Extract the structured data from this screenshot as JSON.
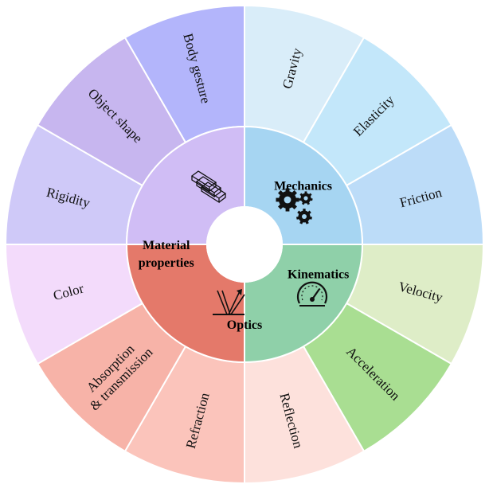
{
  "categories": [
    {
      "id": "mechanics",
      "label": [
        "Mechanics"
      ],
      "color": "#a6d5f2",
      "icon": "gears-icon",
      "items": [
        {
          "label": [
            "Gravity"
          ],
          "color": "#d9edf9"
        },
        {
          "label": [
            "Elasticity"
          ],
          "color": "#c3e7fa"
        },
        {
          "label": [
            "Friction"
          ],
          "color": "#bcdcf8"
        }
      ]
    },
    {
      "id": "kinematics",
      "label": [
        "Kinematics"
      ],
      "color": "#8fd0a9",
      "icon": "speedometer-icon",
      "items": [
        {
          "label": [
            "Velocity"
          ],
          "color": "#deedc7"
        },
        {
          "label": [
            "Acceleration"
          ],
          "color": "#a9de92"
        },
        {
          "label": [
            "Reflection"
          ],
          "color": "#fde1dc"
        }
      ]
    },
    {
      "id": "optics",
      "label": [
        "Optics"
      ],
      "color": "#e4796a",
      "icon": "light-reflection-icon",
      "items": [
        {
          "label": [
            "Refraction"
          ],
          "color": "#fbc4bb"
        },
        {
          "label": [
            "Absorption",
            "& transmission"
          ],
          "color": "#f7b3a8"
        },
        {
          "label": [
            "Color"
          ],
          "color": "#f3dbfb"
        }
      ]
    },
    {
      "id": "material-properties",
      "label": [
        "Material",
        "properties"
      ],
      "color": "#d0bdf5",
      "icon": "material-bars-icon",
      "items": [
        {
          "label": [
            "Rigidity"
          ],
          "color": "#cfc9f8"
        },
        {
          "label": [
            "Object shape"
          ],
          "color": "#c7b6ef"
        },
        {
          "label": [
            "Body gesture"
          ],
          "color": "#b3b5fb"
        }
      ]
    }
  ]
}
